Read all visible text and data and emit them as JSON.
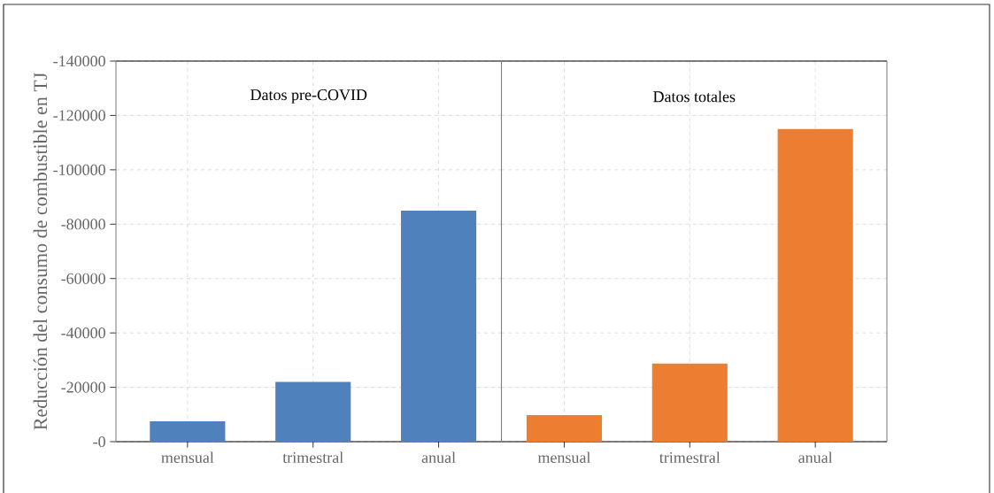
{
  "chart_data": [
    {
      "type": "bar",
      "ylabel": "Reducción del consumo de combustible en TJ",
      "categories": [
        "mensual",
        "trimestral",
        "anual"
      ],
      "values": [
        -7500,
        -22000,
        -85000
      ],
      "color": "#4f81bd",
      "ylim": [
        0,
        -140000
      ],
      "yticks": [
        {
          "value": 0,
          "label": "-0"
        },
        -20000,
        -40000,
        -60000,
        -80000,
        -100000,
        -120000,
        -140000
      ],
      "grid": true,
      "annotations": [
        "Datos pre-COVID"
      ]
    },
    {
      "type": "bar",
      "categories": [
        "mensual",
        "trimestral",
        "anual"
      ],
      "values": [
        -9800,
        -28700,
        -115000
      ],
      "color": "#ed7d31",
      "ylim": [
        0,
        -140000
      ],
      "yticks": [
        0,
        -20000,
        -40000,
        -60000,
        -80000,
        -100000,
        -120000,
        -140000
      ],
      "tick_labels": "x",
      "grid": true,
      "annotations": [
        "Datos totales"
      ]
    }
  ]
}
